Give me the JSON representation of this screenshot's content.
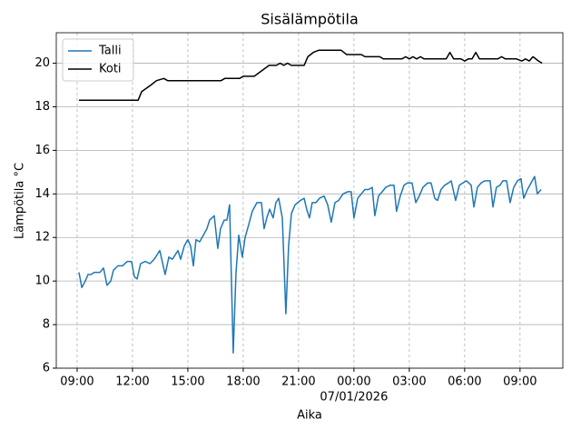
{
  "chart_data": {
    "type": "line",
    "title": "Sisälämpötila",
    "xlabel": "Aika",
    "ylabel": "Lämpötila °C",
    "date_label": "07/01/2026",
    "xlim": [
      7.87,
      35.32
    ],
    "xticks": [
      {
        "value": 9,
        "label": "09:00"
      },
      {
        "value": 12,
        "label": "12:00"
      },
      {
        "value": 15,
        "label": "15:00"
      },
      {
        "value": 18,
        "label": "18:00"
      },
      {
        "value": 21,
        "label": "21:00"
      },
      {
        "value": 24,
        "label": "00:00"
      },
      {
        "value": 27,
        "label": "03:00"
      },
      {
        "value": 30,
        "label": "06:00"
      },
      {
        "value": 33,
        "label": "09:00"
      }
    ],
    "ylim": [
      6,
      21.4
    ],
    "yticks": [
      6,
      8,
      10,
      12,
      14,
      16,
      18,
      20
    ],
    "grid": true,
    "legend": "upper left",
    "series": [
      {
        "name": "Talli",
        "color": "#1f77b4",
        "x": [
          9.1,
          9.25,
          9.44,
          9.59,
          9.74,
          9.93,
          10.23,
          10.43,
          10.62,
          10.82,
          10.97,
          11.21,
          11.46,
          11.71,
          11.95,
          12.1,
          12.25,
          12.44,
          12.69,
          12.94,
          13.18,
          13.48,
          13.77,
          13.97,
          14.16,
          14.46,
          14.61,
          14.8,
          15.0,
          15.15,
          15.3,
          15.44,
          15.64,
          15.84,
          16.03,
          16.18,
          16.43,
          16.62,
          16.77,
          16.97,
          17.12,
          17.26,
          17.46,
          17.61,
          17.76,
          17.95,
          18.1,
          18.3,
          18.49,
          18.74,
          18.99,
          19.13,
          19.28,
          19.43,
          19.62,
          19.77,
          19.92,
          20.12,
          20.31,
          20.46,
          20.61,
          20.81,
          21.1,
          21.3,
          21.44,
          21.59,
          21.74,
          21.94,
          22.13,
          22.38,
          22.58,
          22.77,
          22.97,
          23.17,
          23.41,
          23.66,
          23.85,
          24.0,
          24.2,
          24.4,
          24.59,
          24.79,
          24.99,
          25.13,
          25.33,
          25.53,
          25.72,
          25.97,
          26.17,
          26.31,
          26.51,
          26.71,
          26.9,
          27.15,
          27.35,
          27.54,
          27.74,
          27.99,
          28.18,
          28.38,
          28.53,
          28.72,
          28.92,
          29.12,
          29.27,
          29.51,
          29.71,
          29.9,
          30.1,
          30.35,
          30.5,
          30.69,
          30.89,
          31.09,
          31.38,
          31.53,
          31.72,
          31.92,
          32.07,
          32.27,
          32.46,
          32.66,
          32.86,
          33.05,
          33.2,
          33.4,
          33.6,
          33.79,
          33.94,
          34.14
        ],
        "values": [
          10.4,
          9.7,
          10.0,
          10.3,
          10.3,
          10.4,
          10.4,
          10.6,
          9.8,
          10.0,
          10.5,
          10.7,
          10.7,
          10.9,
          10.9,
          10.2,
          10.1,
          10.8,
          10.9,
          10.8,
          11.0,
          11.4,
          10.3,
          11.1,
          11.0,
          11.4,
          11.0,
          11.6,
          11.9,
          11.6,
          10.7,
          11.9,
          11.8,
          12.1,
          12.4,
          12.8,
          13.0,
          11.5,
          12.4,
          12.8,
          12.8,
          13.5,
          6.7,
          10.4,
          12.1,
          11.1,
          12.0,
          12.6,
          13.2,
          13.6,
          13.6,
          12.4,
          12.9,
          13.3,
          12.9,
          13.6,
          13.8,
          12.9,
          8.5,
          11.6,
          13.1,
          13.5,
          13.7,
          13.8,
          13.3,
          12.9,
          13.6,
          13.6,
          13.8,
          13.9,
          13.5,
          12.7,
          13.6,
          13.7,
          14.0,
          14.1,
          14.1,
          12.9,
          13.8,
          14.0,
          14.2,
          14.2,
          14.3,
          13.0,
          13.9,
          14.1,
          14.3,
          14.4,
          14.4,
          13.2,
          13.9,
          14.4,
          14.5,
          14.5,
          13.6,
          13.9,
          14.3,
          14.5,
          14.5,
          13.8,
          13.7,
          14.2,
          14.4,
          14.5,
          14.6,
          13.7,
          14.4,
          14.5,
          14.6,
          14.4,
          13.4,
          14.3,
          14.5,
          14.6,
          14.6,
          13.4,
          14.3,
          14.4,
          14.6,
          14.6,
          13.6,
          14.3,
          14.6,
          14.7,
          13.8,
          14.2,
          14.5,
          14.8,
          14.0,
          14.2
        ]
      },
      {
        "name": "Koti",
        "color": "#000000",
        "x": [
          9.1,
          12.3,
          12.5,
          13.0,
          13.3,
          13.7,
          13.9,
          16.8,
          17.0,
          17.8,
          18.0,
          18.6,
          19.4,
          19.8,
          20.0,
          20.2,
          20.4,
          20.6,
          21.3,
          21.5,
          21.8,
          22.1,
          23.3,
          23.6,
          24.4,
          24.6,
          25.4,
          25.6,
          26.6,
          26.8,
          27.0,
          27.2,
          27.4,
          27.6,
          27.8,
          29.0,
          29.2,
          29.4,
          29.8,
          30.0,
          30.2,
          30.4,
          30.6,
          30.8,
          31.8,
          32.0,
          32.2,
          32.8,
          33.1,
          33.3,
          33.5,
          33.7,
          34.0,
          34.2
        ],
        "values": [
          18.3,
          18.3,
          18.7,
          19.0,
          19.2,
          19.3,
          19.2,
          19.2,
          19.3,
          19.3,
          19.4,
          19.4,
          19.9,
          19.9,
          20.0,
          19.9,
          20.0,
          19.9,
          19.9,
          20.3,
          20.5,
          20.6,
          20.6,
          20.4,
          20.4,
          20.3,
          20.3,
          20.2,
          20.2,
          20.3,
          20.2,
          20.3,
          20.2,
          20.3,
          20.2,
          20.2,
          20.5,
          20.2,
          20.2,
          20.1,
          20.2,
          20.2,
          20.5,
          20.2,
          20.2,
          20.3,
          20.2,
          20.2,
          20.1,
          20.2,
          20.1,
          20.3,
          20.1,
          20.0
        ]
      }
    ]
  }
}
